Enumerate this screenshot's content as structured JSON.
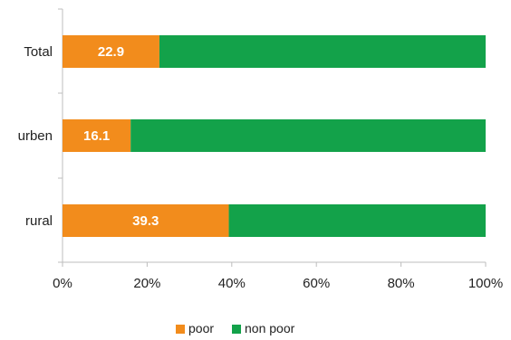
{
  "chart_data": {
    "type": "bar",
    "orientation": "horizontal",
    "stacked": true,
    "categories": [
      "Total",
      "urben",
      "rural"
    ],
    "series": [
      {
        "name": "poor",
        "values": [
          22.9,
          16.1,
          39.3
        ],
        "color": "#f28c1c"
      },
      {
        "name": "non poor",
        "values": [
          77.1,
          83.9,
          60.7
        ],
        "color": "#13a24a"
      }
    ],
    "data_labels": [
      "22.9",
      "16.1",
      "39.3"
    ],
    "xlim": [
      0,
      100
    ],
    "x_ticks": [
      "0%",
      "20%",
      "40%",
      "60%",
      "80%",
      "100%"
    ],
    "grid": false,
    "legend": {
      "position": "bottom",
      "entries": [
        "poor",
        "non poor"
      ]
    }
  }
}
